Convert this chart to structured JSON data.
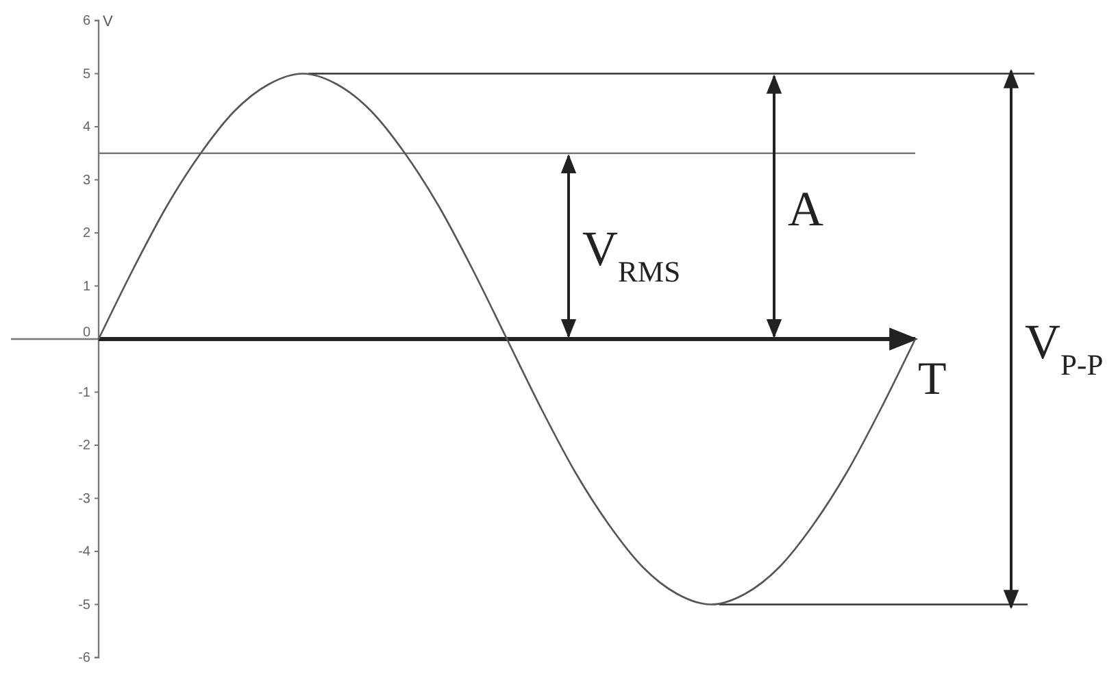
{
  "chart_data": {
    "type": "line",
    "ylabel": "V",
    "annotations": [
      "T",
      "V$_{P-P}$"
    ],
    "categories": [
      null,
      null,
      null,
      null,
      null,
      null,
      null,
      null,
      null,
      null,
      null,
      null,
      null,
      null,
      null,
      null,
      null,
      null,
      null,
      null,
      null,
      null,
      null,
      null,
      null
    ],
    "series": [
      {
        "color": "#555555",
        "values": [
          0,
          1.3,
          2.5,
          3.5,
          4.3,
          4.8,
          5,
          4.8,
          4.3,
          3.5,
          2.5,
          1.3,
          0,
          -1.3,
          -2.5,
          -3.5,
          -4.3,
          -4.8,
          -5,
          -4.8,
          -4.3,
          -3.5,
          -2.5,
          -1.3,
          0
        ]
      }
    ],
    "ylim": [
      -6,
      6
    ],
    "yticks": [
      -6,
      -5,
      -4,
      -3,
      -2,
      -1,
      0,
      1,
      2,
      3,
      4,
      5,
      6
    ],
    "ref_lines": [
      {
        "axis": "y",
        "value": 3.5,
        "label": "V$_{RMS}$",
        "color": "#777777"
      },
      {
        "axis": "y",
        "value": 5,
        "label": "A",
        "color": "#333333"
      },
      {
        "axis": "y",
        "value": -5,
        "color": "#333333"
      }
    ],
    "grid": false,
    "marker": "none",
    "line_style": "solid"
  }
}
